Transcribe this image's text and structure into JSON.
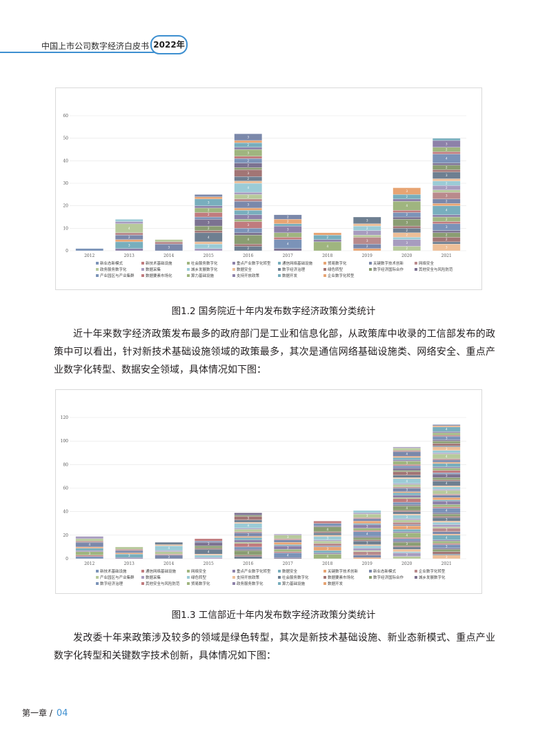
{
  "header": {
    "title": "中国上市公司数字经济白皮书",
    "year": "2022年"
  },
  "figures": [
    {
      "caption": "图1.2 国务院近十年内发布数字经济政策分类统计",
      "chart_data": {
        "type": "bar",
        "stacked": true,
        "categories": [
          "2012",
          "2013",
          "2014",
          "2015",
          "2016",
          "2017",
          "2018",
          "2019",
          "2020",
          "2021"
        ],
        "totals": [
          1,
          14,
          5,
          25,
          52,
          16,
          8,
          15,
          28,
          50
        ],
        "ylim": [
          0,
          60
        ],
        "yticks": [
          0,
          10,
          20,
          30,
          40,
          50,
          60
        ],
        "legend": [
          "新业态新模式",
          "新技术基础设施",
          "社会服务数字化",
          "重点产业数字化转型",
          "通信网络基础设施",
          "贸易数字化",
          "关键数字技术创新",
          "网络安全",
          "政务服务数字化",
          "数据采集",
          "城乡发展数字化",
          "数据安全",
          "数字经济治理",
          "绿色转型",
          "数字经济国际合作",
          "其他安全与风险防范",
          "产业园区与产业集群",
          "数据要素市场化",
          "算力基础设施",
          "支持开放政策",
          "数据开发",
          "企业数字化转型"
        ],
        "grid": true,
        "legend_position": "bottom"
      }
    },
    {
      "caption": "图1.3 工信部近十年内发布数字经济政策分类统计",
      "chart_data": {
        "type": "bar",
        "stacked": true,
        "categories": [
          "2012",
          "2013",
          "2014",
          "2015",
          "2016",
          "2017",
          "2018",
          "2019",
          "2020",
          "2021"
        ],
        "totals": [
          19,
          10,
          14,
          17,
          39,
          21,
          32,
          41,
          95,
          114
        ],
        "ylim": [
          0,
          120
        ],
        "yticks": [
          0,
          20,
          40,
          60,
          80,
          100,
          120
        ],
        "legend": [
          "新技术基础设施",
          "通信网络基础设施",
          "网络安全",
          "重点产业数字化转型",
          "数据安全",
          "关键数字技术创新",
          "新业态新模式",
          "企业数字化转型",
          "产业园区与产业集群",
          "数据采集",
          "绿色转型",
          "支持开放政策",
          "社会服务数字化",
          "数据要素市场化",
          "数字经济国际合作",
          "城乡发展数字化",
          "数字经济治理",
          "其他安全与风险防范",
          "贸易数字化",
          "政务服务数字化",
          "算力基础设施",
          "数据开发"
        ],
        "grid": true,
        "legend_position": "bottom"
      }
    }
  ],
  "paragraphs": [
    "近十年来数字经济政策发布最多的政府部门是工业和信息化部，从政策库中收录的工信部发布的政策中可以看出，针对新技术基础设施领域的政策最多，其次是通信网络基础设施类、网络安全、重点产业数字化转型、数据安全领域，具体情况如下图：",
    "发改委十年来政策涉及较多的领域是绿色转型，其次是新技术基础设施、新业态新模式、重点产业数字化转型和关键数字技术创新，具体情况如下图："
  ],
  "footer": {
    "chapter": "第一章 /",
    "page": "04"
  },
  "palette": [
    "#7b93b8",
    "#c07b7e",
    "#9fb57f",
    "#8d81a9",
    "#78aebd",
    "#e7a473",
    "#7b88aa",
    "#b98a8c",
    "#b7c99b",
    "#a79cbf",
    "#9bcbd6",
    "#edbf98",
    "#6e7f91",
    "#a27575",
    "#8a9d72",
    "#7c7291"
  ]
}
